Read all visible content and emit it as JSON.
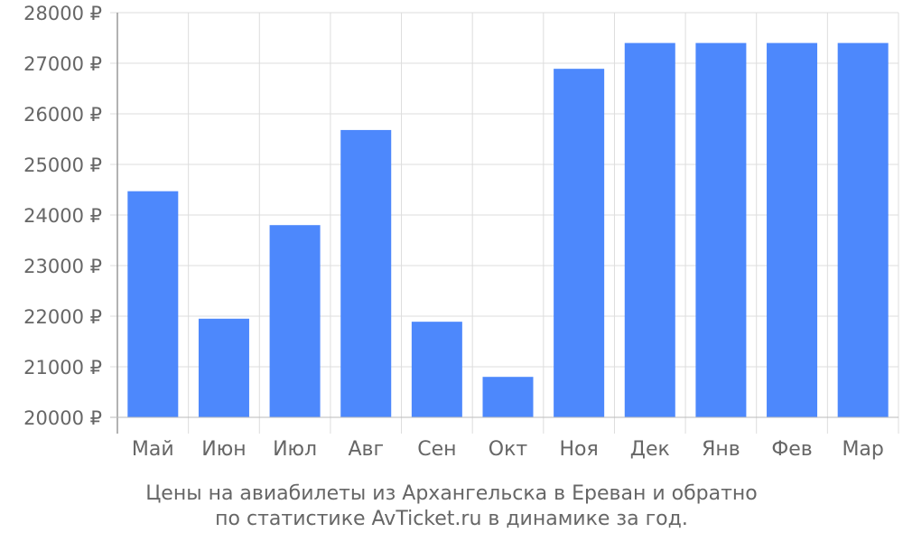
{
  "chart_data": {
    "type": "bar",
    "categories": [
      "Май",
      "Июн",
      "Июл",
      "Авг",
      "Сен",
      "Окт",
      "Ноя",
      "Дек",
      "Янв",
      "Фев",
      "Мар"
    ],
    "values": [
      24470,
      21950,
      23800,
      25680,
      21890,
      20800,
      26890,
      27400,
      27400,
      27400,
      27400
    ],
    "ylim": [
      20000,
      28000
    ],
    "yticks": [
      20000,
      21000,
      22000,
      23000,
      24000,
      25000,
      26000,
      27000,
      28000
    ],
    "ytick_suffix": " ₽",
    "grid": true,
    "bar_color": "#4d88fc",
    "grid_color": "#dddddd",
    "axis_text_color": "#666666"
  },
  "caption": {
    "line1": "Цены на авиабилеты из Архангельска в Ереван и обратно",
    "line2": "по статистике AvTicket.ru в динамике за год."
  }
}
